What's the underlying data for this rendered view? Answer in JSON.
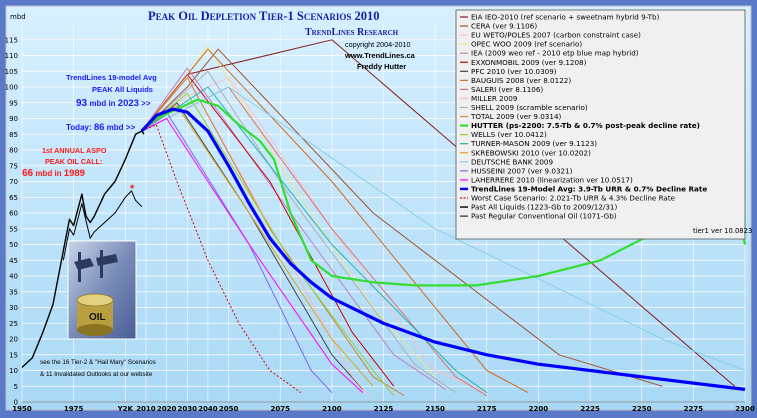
{
  "chart_data": {
    "type": "line",
    "title": "Peak Oil Depletion Tier-1 Scenarios 2010",
    "publisher": "TrendLines Research",
    "copyright": "copyright 2004-2010",
    "website": "www.TrendLines.ca",
    "author": "Freddy Hutter",
    "ylabel": "mbd",
    "ylim": [
      0,
      120
    ],
    "xlim": [
      1950,
      2300
    ],
    "y_ticks": [
      0,
      5,
      10,
      15,
      20,
      25,
      30,
      35,
      40,
      45,
      50,
      55,
      60,
      65,
      70,
      75,
      80,
      85,
      90,
      95,
      100,
      105,
      110,
      115
    ],
    "x_tick_labels": [
      {
        "label": "1950",
        "x": 1950
      },
      {
        "label": "1975",
        "x": 1975
      },
      {
        "label": "Y2K",
        "x": 2000
      },
      {
        "label": "2010",
        "x": 2010
      },
      {
        "label": "2020",
        "x": 2020
      },
      {
        "label": "2030",
        "x": 2030
      },
      {
        "label": "2040",
        "x": 2040
      },
      {
        "label": "2050",
        "x": 2050
      },
      {
        "label": "2075",
        "x": 2075
      },
      {
        "label": "2100",
        "x": 2100
      },
      {
        "label": "2125",
        "x": 2125
      },
      {
        "label": "2150",
        "x": 2150
      },
      {
        "label": "2175",
        "x": 2175
      },
      {
        "label": "2200",
        "x": 2200
      },
      {
        "label": "2225",
        "x": 2225
      },
      {
        "label": "2250",
        "x": 2250
      },
      {
        "label": "2275",
        "x": 2275
      },
      {
        "label": "2300",
        "x": 2300
      }
    ],
    "grid": true,
    "legend_position": "top-right",
    "version": "tier1 ver 10.0823",
    "annotations": {
      "avg_line1": "TrendLines 19-model Avg",
      "avg_line2": "PEAK All Liquids",
      "avg_value": "93",
      "avg_mid": " mbd in ",
      "avg_year": "2023",
      "avg_arrow": " >>",
      "today_label": "Today: ",
      "today_value": "86",
      "today_suffix": " mbd >>",
      "aspo_line1": "1st ANNUAL ASPO",
      "aspo_line2": "PEAK OIL CALL:",
      "aspo_value": "66",
      "aspo_mid": " mbd in ",
      "aspo_year": "1989",
      "footer_line1": "see the 16 Tier-2 & \"Hail Mary\" Scenarios",
      "footer_line2": "& 11 Invalidated Outlooks at our website",
      "image_text": "OIL"
    },
    "series": [
      {
        "name": "EIA IEO-2010 (ref scenario + sweetnam hybrid 9-Tb)",
        "color": "#8b1a1a",
        "points": [
          [
            2008,
            86
          ],
          [
            2030,
            104
          ],
          [
            2100,
            115
          ],
          [
            2295,
            5
          ]
        ]
      },
      {
        "name": "CERA (ver 9.1106)",
        "color": "#a0522d",
        "points": [
          [
            2008,
            86
          ],
          [
            2030,
            100
          ],
          [
            2045,
            112
          ],
          [
            2120,
            60
          ],
          [
            2210,
            15
          ],
          [
            2260,
            5
          ]
        ]
      },
      {
        "name": "EU WETO/POLES 2007 (carbon constraint case)",
        "color": "#ffc0cb",
        "points": [
          [
            2008,
            86
          ],
          [
            2030,
            97
          ],
          [
            2050,
            103
          ],
          [
            2100,
            55
          ],
          [
            2150,
            10
          ],
          [
            2175,
            3
          ]
        ]
      },
      {
        "name": "OPEC WOO 2009 (ref scenario)",
        "color": "#f0e68c",
        "points": [
          [
            2008,
            86
          ],
          [
            2030,
            104
          ],
          [
            2040,
            113
          ],
          [
            2080,
            70
          ],
          [
            2120,
            30
          ],
          [
            2150,
            8
          ]
        ]
      },
      {
        "name": "IEA (2009 weo ref - 2010 etp blue map hybrid)",
        "color": "#c080c0",
        "points": [
          [
            2008,
            86
          ],
          [
            2030,
            106
          ],
          [
            2080,
            60
          ],
          [
            2130,
            15
          ],
          [
            2155,
            4
          ]
        ]
      },
      {
        "name": "EXXONMOBIL 2009 (ver 9.1208)",
        "color": "#cc0000",
        "points": [
          [
            2008,
            86
          ],
          [
            2030,
            104
          ],
          [
            2070,
            70
          ],
          [
            2110,
            22
          ],
          [
            2130,
            5
          ]
        ]
      },
      {
        "name": "PFC 2010 (ver 10.0309)",
        "color": "#444444",
        "points": [
          [
            2008,
            86
          ],
          [
            2025,
            95
          ],
          [
            2060,
            60
          ],
          [
            2100,
            15
          ],
          [
            2115,
            4
          ]
        ]
      },
      {
        "name": "BAUGUIS 2008 (ver 8.0122)",
        "color": "#d2691e",
        "points": [
          [
            2008,
            86
          ],
          [
            2040,
            112
          ],
          [
            2100,
            70
          ],
          [
            2175,
            10
          ],
          [
            2195,
            3
          ]
        ]
      },
      {
        "name": "SALERI (ver 8.1106)",
        "color": "#e07070",
        "points": [
          [
            2008,
            86
          ],
          [
            2050,
            100
          ],
          [
            2100,
            55
          ],
          [
            2160,
            8
          ],
          [
            2175,
            2
          ]
        ]
      },
      {
        "name": "MILLER 2009",
        "color": "#ffb6c1",
        "points": [
          [
            2008,
            86
          ],
          [
            2030,
            103
          ],
          [
            2075,
            50
          ],
          [
            2110,
            8
          ],
          [
            2118,
            2
          ]
        ]
      },
      {
        "name": "SHELL 2009 (scramble scenario)",
        "color": "#b0b0b0",
        "points": [
          [
            2008,
            86
          ],
          [
            2040,
            105
          ],
          [
            2080,
            65
          ],
          [
            2140,
            12
          ],
          [
            2160,
            3
          ]
        ]
      },
      {
        "name": "TOTAL 2009 (ver 9.0314)",
        "color": "#cd853f",
        "points": [
          [
            2008,
            86
          ],
          [
            2030,
            103
          ],
          [
            2070,
            55
          ],
          [
            2120,
            8
          ],
          [
            2135,
            2
          ]
        ]
      },
      {
        "name": "HUTTER (ps-2200: 7.5-Tb & 0.7% post-peak decline rate)",
        "color": "#33dd33",
        "width": 2.2,
        "bold": true,
        "points": [
          [
            2008,
            86
          ],
          [
            2015,
            90
          ],
          [
            2025,
            93
          ],
          [
            2035,
            96
          ],
          [
            2045,
            94
          ],
          [
            2055,
            88
          ],
          [
            2065,
            83
          ],
          [
            2072,
            77
          ],
          [
            2080,
            60
          ],
          [
            2090,
            45
          ],
          [
            2100,
            40
          ],
          [
            2120,
            38
          ],
          [
            2140,
            37
          ],
          [
            2170,
            37
          ],
          [
            2200,
            40
          ],
          [
            2230,
            45
          ],
          [
            2260,
            55
          ],
          [
            2285,
            67
          ],
          [
            2295,
            65
          ],
          [
            2300,
            50
          ]
        ]
      },
      {
        "name": "WELLS (ver 10.0412)",
        "color": "#9acd32",
        "points": [
          [
            2008,
            86
          ],
          [
            2030,
            98
          ],
          [
            2080,
            45
          ],
          [
            2120,
            10
          ],
          [
            2130,
            2
          ]
        ]
      },
      {
        "name": "TURNER-MASON 2009 (ver 9.1123)",
        "color": "#20b2aa",
        "points": [
          [
            2008,
            86
          ],
          [
            2040,
            100
          ],
          [
            2100,
            50
          ],
          [
            2160,
            10
          ],
          [
            2175,
            3
          ]
        ]
      },
      {
        "name": "SKREBOWSKI 2010 (ver 10.0202)",
        "color": "#daa520",
        "points": [
          [
            2008,
            86
          ],
          [
            2025,
            94
          ],
          [
            2060,
            60
          ],
          [
            2100,
            20
          ],
          [
            2120,
            5
          ]
        ]
      },
      {
        "name": "DEUTSCHE BANK 2009",
        "color": "#87ceeb",
        "points": [
          [
            2008,
            86
          ],
          [
            2050,
            100
          ],
          [
            2150,
            55
          ],
          [
            2260,
            20
          ],
          [
            2300,
            10
          ]
        ]
      },
      {
        "name": "HUSSEINI 2007 (ver 9.0321)",
        "color": "#7b68ee",
        "points": [
          [
            2008,
            86
          ],
          [
            2020,
            92
          ],
          [
            2060,
            50
          ],
          [
            2090,
            10
          ],
          [
            2100,
            3
          ]
        ]
      },
      {
        "name": "LAHERRERE 2010 (linearization ver 10.0517)",
        "color": "#ff00ff",
        "points": [
          [
            2008,
            86
          ],
          [
            2020,
            90
          ],
          [
            2060,
            50
          ],
          [
            2100,
            12
          ],
          [
            2115,
            3
          ]
        ]
      },
      {
        "name": "TrendLines 19-Model Avg:  3.9-Tb URR & 0.7% Decline Rate",
        "color": "#0000ff",
        "width": 3.2,
        "bold": true,
        "points": [
          [
            2008,
            86
          ],
          [
            2015,
            91
          ],
          [
            2023,
            93
          ],
          [
            2030,
            92
          ],
          [
            2040,
            86
          ],
          [
            2050,
            75
          ],
          [
            2060,
            63
          ],
          [
            2070,
            52
          ],
          [
            2080,
            44
          ],
          [
            2090,
            38
          ],
          [
            2100,
            33
          ],
          [
            2125,
            25
          ],
          [
            2150,
            19
          ],
          [
            2175,
            15
          ],
          [
            2200,
            12
          ],
          [
            2225,
            10
          ],
          [
            2250,
            8
          ],
          [
            2275,
            6
          ],
          [
            2300,
            4
          ]
        ]
      },
      {
        "name": "Worst Case Scenario: 2.021-Tb URR & 4.3% Decline Rate",
        "color": "#dd0000",
        "dashed": true,
        "red_text": true,
        "points": [
          [
            2008,
            86
          ],
          [
            2015,
            88
          ],
          [
            2025,
            70
          ],
          [
            2040,
            45
          ],
          [
            2055,
            25
          ],
          [
            2070,
            10
          ],
          [
            2085,
            3
          ]
        ]
      },
      {
        "name": "Past All Liquids (1223-Gb to 2009/12/31)",
        "color": "#000000",
        "width": 1.4,
        "points": [
          [
            1950,
            11
          ],
          [
            1955,
            14
          ],
          [
            1960,
            22
          ],
          [
            1965,
            31
          ],
          [
            1970,
            48
          ],
          [
            1973,
            58
          ],
          [
            1975,
            56
          ],
          [
            1979,
            66
          ],
          [
            1981,
            59
          ],
          [
            1983,
            57
          ],
          [
            1985,
            59
          ],
          [
            1990,
            66
          ],
          [
            1995,
            70
          ],
          [
            2000,
            77
          ],
          [
            2005,
            85
          ],
          [
            2008,
            86
          ],
          [
            2009,
            85
          ]
        ]
      },
      {
        "name": "Past Regular Conventional Oil (1071-Gb)",
        "color": "#000000",
        "width": 1.0,
        "points": [
          [
            1970,
            45
          ],
          [
            1973,
            55
          ],
          [
            1975,
            53
          ],
          [
            1979,
            63
          ],
          [
            1983,
            52
          ],
          [
            1985,
            54
          ],
          [
            1990,
            57
          ],
          [
            1995,
            60
          ],
          [
            2000,
            65
          ],
          [
            2003,
            67
          ],
          [
            2005,
            64
          ],
          [
            2008,
            62
          ]
        ]
      }
    ]
  }
}
